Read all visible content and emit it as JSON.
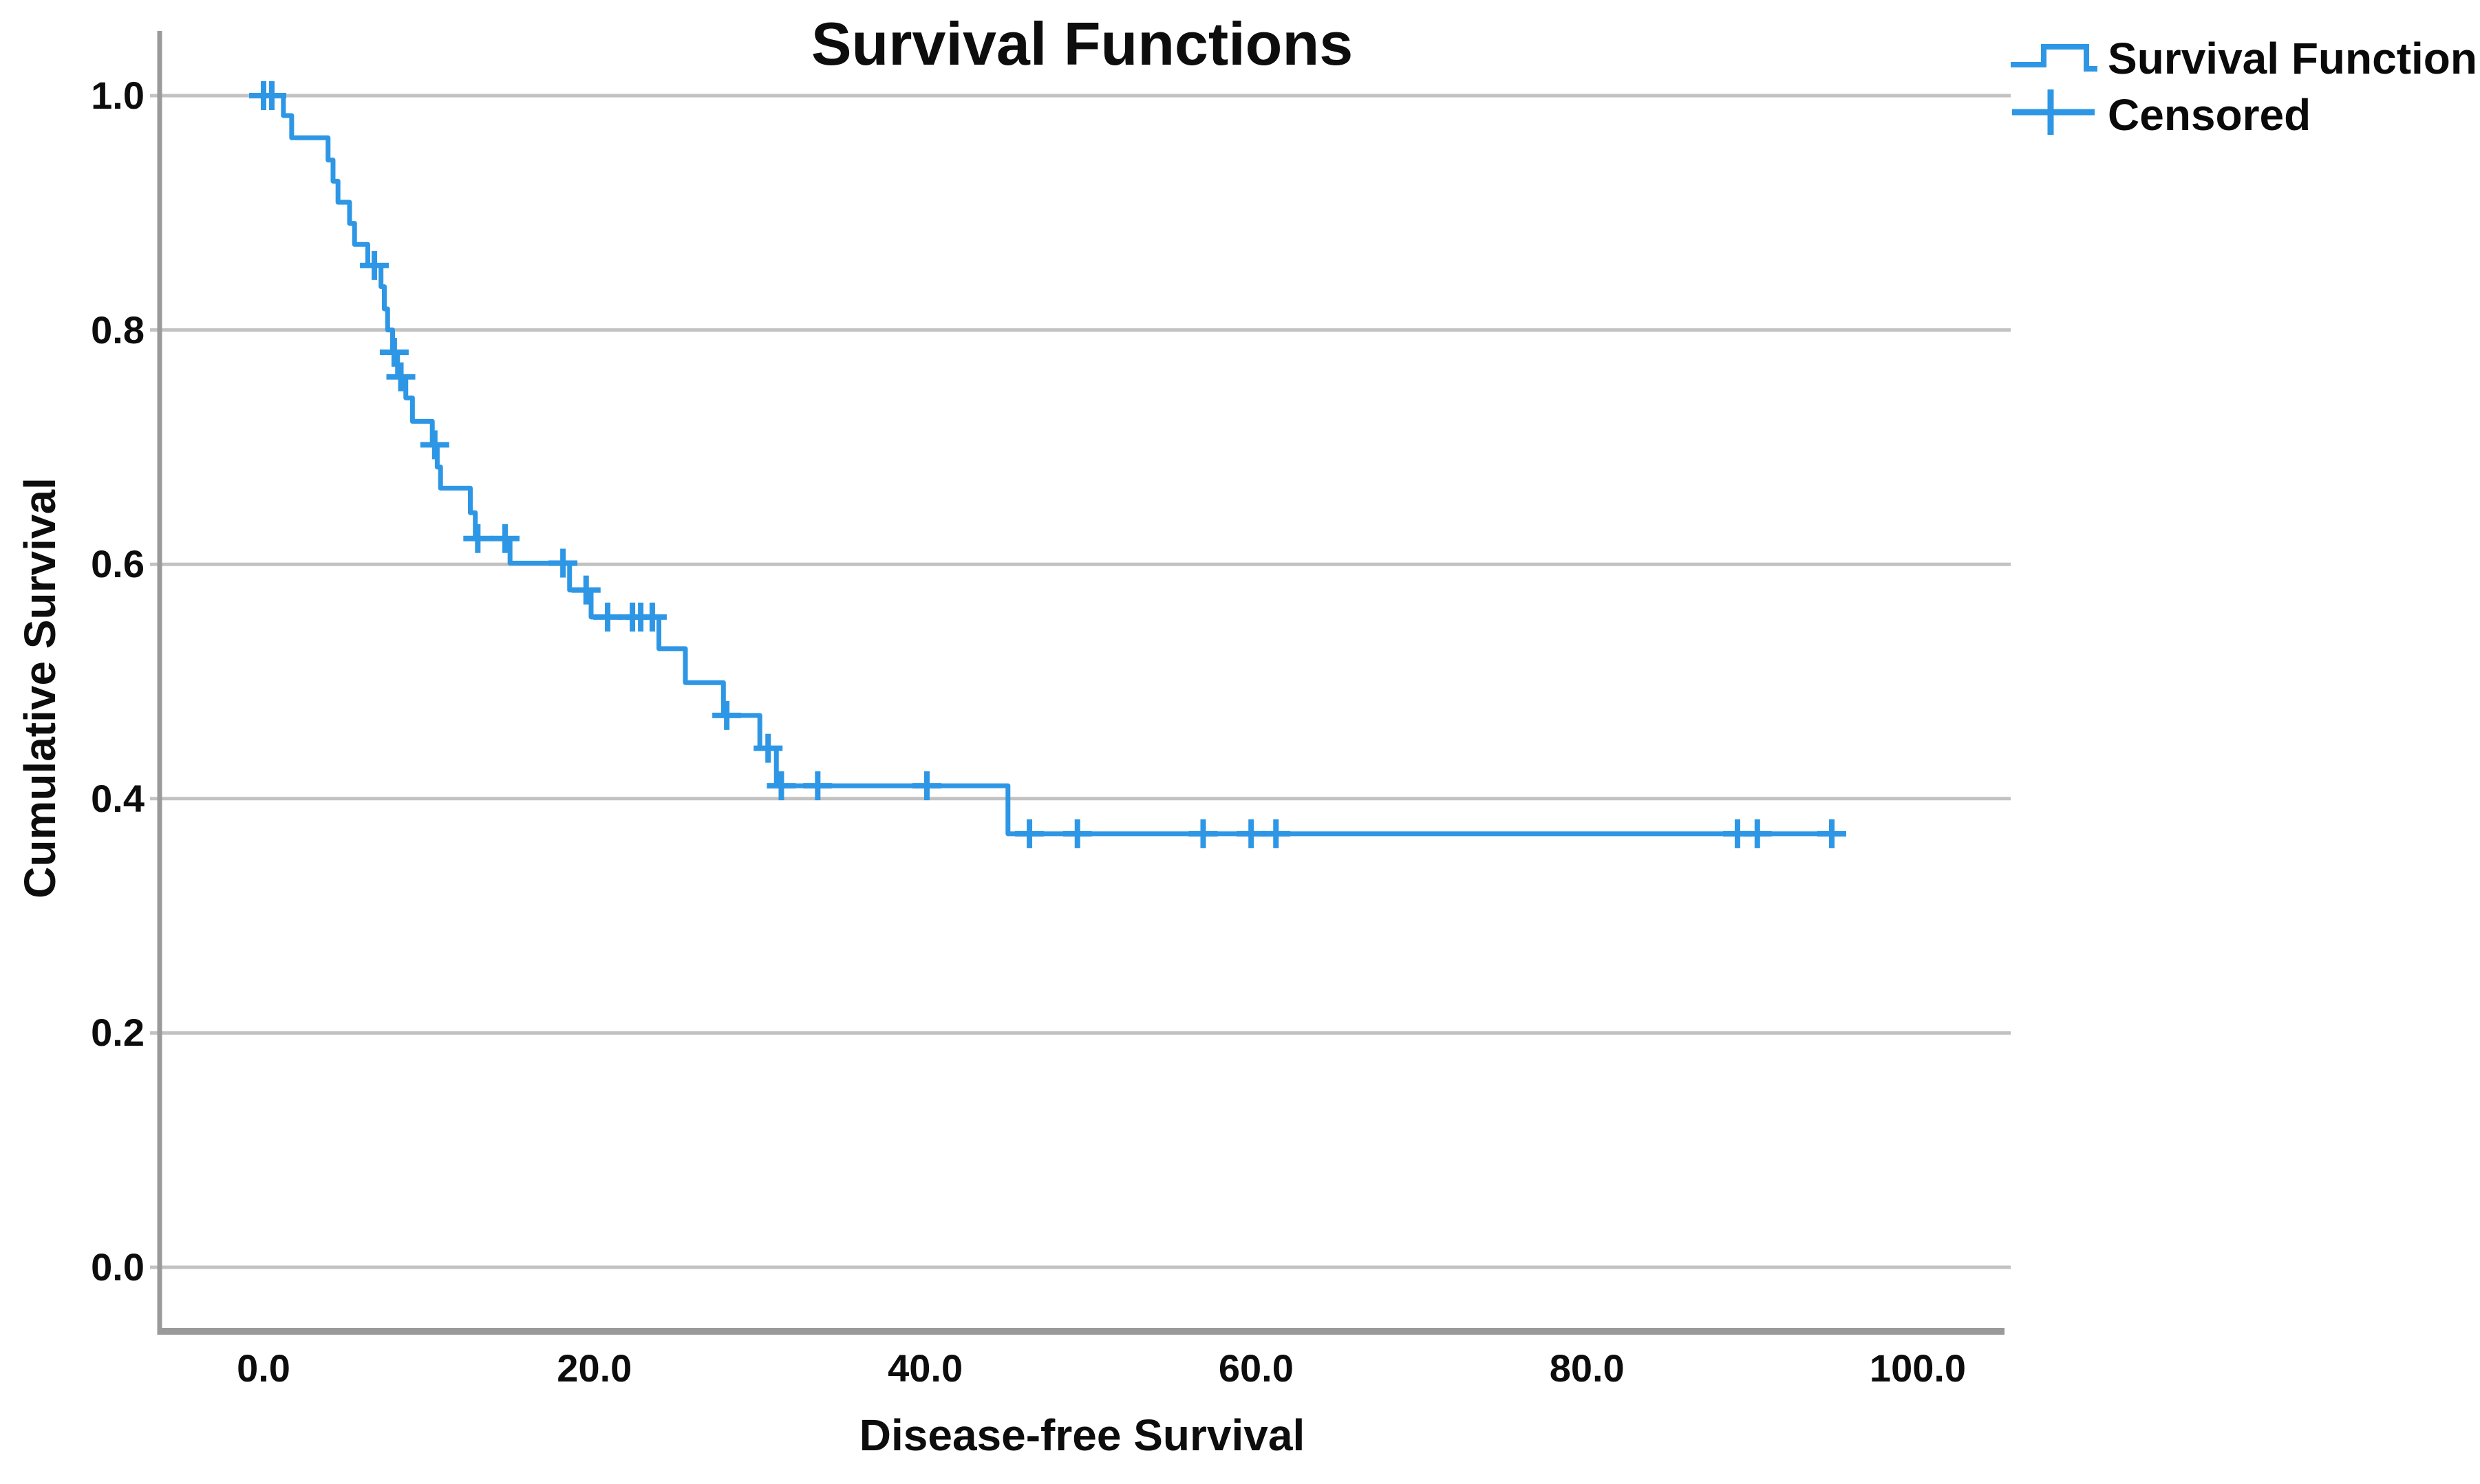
{
  "title": "Survival Functions",
  "axes": {
    "x": {
      "label": "Disease-free Survival",
      "ticks": [
        "0.0",
        "20.0",
        "40.0",
        "60.0",
        "80.0",
        "100.0"
      ],
      "tick_values": [
        0,
        20,
        40,
        60,
        80,
        100
      ]
    },
    "y": {
      "label": "Cumulative Survival",
      "ticks": [
        "1.0",
        "0.8",
        "0.6",
        "0.4",
        "0.2",
        "0.0"
      ],
      "tick_values": [
        1.0,
        0.8,
        0.6,
        0.4,
        0.2,
        0.0
      ]
    }
  },
  "legend": [
    {
      "label": "Survival Function",
      "symbol": "step-line"
    },
    {
      "label": "Censored",
      "symbol": "plus"
    }
  ],
  "colors": {
    "series": "#2E97E5",
    "gridline": "#C2C2C2",
    "axis": "#9A9A9A",
    "text": "#0D0D0D",
    "background": "#FFFFFF"
  },
  "chart_data": {
    "type": "line",
    "subtype": "kaplan-meier-step",
    "title": "Survival Functions",
    "xlabel": "Disease-free Survival",
    "ylabel": "Cumulative Survival",
    "xlim": [
      -6.3,
      105.6
    ],
    "ylim": [
      -0.055,
      1.055
    ],
    "grid": "horizontal",
    "legend_position": "top-right",
    "series": [
      {
        "name": "Survival Function",
        "start": [
          0,
          1.0
        ],
        "steps": [
          [
            1.2,
            0.983
          ],
          [
            1.7,
            0.964
          ],
          [
            3.9,
            0.945
          ],
          [
            4.2,
            0.927
          ],
          [
            4.5,
            0.909
          ],
          [
            5.2,
            0.891
          ],
          [
            5.5,
            0.873
          ],
          [
            6.3,
            0.855
          ],
          [
            7.1,
            0.837
          ],
          [
            7.3,
            0.818
          ],
          [
            7.5,
            0.8
          ],
          [
            7.8,
            0.781
          ],
          [
            8.1,
            0.76
          ],
          [
            8.6,
            0.742
          ],
          [
            9.0,
            0.722
          ],
          [
            10.2,
            0.702
          ],
          [
            10.5,
            0.683
          ],
          [
            10.7,
            0.665
          ],
          [
            12.5,
            0.644
          ],
          [
            12.8,
            0.622
          ],
          [
            14.9,
            0.601
          ],
          [
            18.5,
            0.578
          ],
          [
            19.8,
            0.555
          ],
          [
            23.9,
            0.528
          ],
          [
            25.5,
            0.499
          ],
          [
            27.8,
            0.471
          ],
          [
            30.0,
            0.443
          ],
          [
            31.0,
            0.411
          ],
          [
            45.0,
            0.37
          ]
        ],
        "end_time": 95.5
      }
    ],
    "censored": [
      [
        0.0,
        1.0
      ],
      [
        0.5,
        1.0
      ],
      [
        6.7,
        0.855
      ],
      [
        7.9,
        0.781
      ],
      [
        8.3,
        0.76
      ],
      [
        10.35,
        0.702
      ],
      [
        12.95,
        0.622
      ],
      [
        14.6,
        0.622
      ],
      [
        18.1,
        0.601
      ],
      [
        19.5,
        0.578
      ],
      [
        20.8,
        0.555
      ],
      [
        22.3,
        0.555
      ],
      [
        22.8,
        0.555
      ],
      [
        23.5,
        0.555
      ],
      [
        28.0,
        0.471
      ],
      [
        30.5,
        0.443
      ],
      [
        31.3,
        0.411
      ],
      [
        33.5,
        0.411
      ],
      [
        40.1,
        0.411
      ],
      [
        46.3,
        0.37
      ],
      [
        49.2,
        0.37
      ],
      [
        56.8,
        0.37
      ],
      [
        59.7,
        0.37
      ],
      [
        61.2,
        0.37
      ],
      [
        89.1,
        0.37
      ],
      [
        90.3,
        0.37
      ],
      [
        94.8,
        0.37
      ]
    ]
  }
}
